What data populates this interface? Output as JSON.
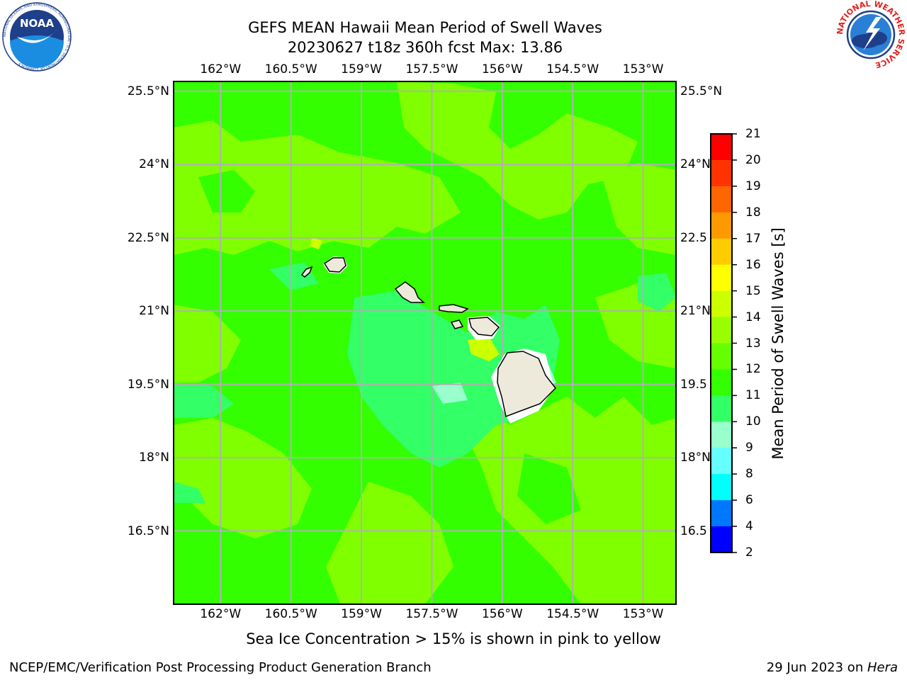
{
  "title": {
    "line1": "GEFS MEAN Hawaii Mean Period of Swell Waves",
    "line2": "20230627 t18z 360h fcst   Max: 13.86"
  },
  "logos": {
    "left": "noaa-logo",
    "left_text": "NOAA",
    "left_ring_text": "NATIONAL OCEANIC AND ATMOSPHERIC ADMINISTRATION · U.S. DEPARTMENT OF COMMERCE",
    "right": "nws-logo",
    "right_ring_text": "NATIONAL WEATHER SERVICE"
  },
  "map": {
    "lon_ticks": [
      "162°W",
      "160.5°W",
      "159°W",
      "157.5°W",
      "156°W",
      "154.5°W",
      "153°W"
    ],
    "lat_ticks": [
      "25.5°N",
      "24°N",
      "22.5°N",
      "21°N",
      "19.5°N",
      "18°N",
      "16.5°N"
    ],
    "lat_ticks_right": [
      "25.5°N",
      "24°N",
      "22.5",
      "21°N",
      "19.5",
      "18°N",
      "16.5"
    ],
    "lon_values": [
      -162,
      -160.5,
      -159,
      -157.5,
      -156,
      -154.5,
      -153
    ],
    "lat_values": [
      25.5,
      24,
      22.5,
      21,
      19.5,
      18,
      16.5
    ],
    "lon_range": [
      -163,
      -152.3
    ],
    "lat_range": [
      15,
      25.7
    ],
    "gridlines": true,
    "field": "Mean Period of Swell Waves",
    "background_color": "#33ff00"
  },
  "colorbar": {
    "label": "Mean Period of Swell Waves [s]",
    "ticks": [
      "21",
      "20",
      "19",
      "18",
      "17",
      "16",
      "15",
      "14",
      "13",
      "12",
      "11",
      "10",
      "9",
      "8",
      "6",
      "4",
      "2"
    ],
    "colors": [
      "#ff0000",
      "#ff3300",
      "#ff6600",
      "#ff9900",
      "#ffcc00",
      "#ffff00",
      "#ccff00",
      "#99ff00",
      "#66ff00",
      "#33ff00",
      "#33ff66",
      "#99ffcc",
      "#66ffff",
      "#00ffff",
      "#0077ff",
      "#0000ff"
    ]
  },
  "sea_ice_note": "Sea Ice Concentration > 15% is shown in pink to yellow",
  "footer": {
    "left": "NCEP/EMC/Verification Post Processing Product Generation Branch",
    "right_prefix": "29 Jun 2023 on ",
    "right_host": "Hera"
  }
}
